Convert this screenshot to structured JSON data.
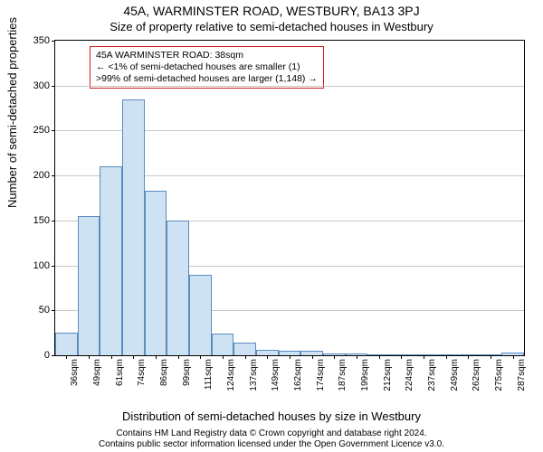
{
  "title_main": "45A, WARMINSTER ROAD, WESTBURY, BA13 3PJ",
  "title_sub": "Size of property relative to semi-detached houses in Westbury",
  "y_axis_label": "Number of semi-detached properties",
  "x_axis_label": "Distribution of semi-detached houses by size in Westbury",
  "chart": {
    "type": "histogram",
    "ylim": [
      0,
      350
    ],
    "ytick_step": 50,
    "y_ticks": [
      0,
      50,
      100,
      150,
      200,
      250,
      300,
      350
    ],
    "grid_color": "#c8c8c8",
    "border_color": "#000000",
    "bar_fill": "#cfe2f3",
    "bar_stroke": "#5b8cbf",
    "background": "#ffffff",
    "tick_fontsize": 11,
    "categories": [
      "36sqm",
      "49sqm",
      "61sqm",
      "74sqm",
      "86sqm",
      "99sqm",
      "111sqm",
      "124sqm",
      "137sqm",
      "149sqm",
      "162sqm",
      "174sqm",
      "187sqm",
      "199sqm",
      "212sqm",
      "224sqm",
      "237sqm",
      "249sqm",
      "262sqm",
      "275sqm",
      "287sqm"
    ],
    "values": [
      25,
      155,
      210,
      285,
      183,
      150,
      90,
      24,
      14,
      6,
      5,
      5,
      2,
      2,
      0,
      0,
      1,
      0,
      0,
      0,
      3
    ]
  },
  "annotation": {
    "line1": "45A WARMINSTER ROAD: 38sqm",
    "line2": "← <1% of semi-detached houses are smaller (1)",
    "line3": ">99% of semi-detached houses are larger (1,148) →",
    "border_color": "#d01c1c",
    "text_color": "#000000"
  },
  "footer": {
    "line1": "Contains HM Land Registry data © Crown copyright and database right 2024.",
    "line2": "Contains public sector information licensed under the Open Government Licence v3.0."
  }
}
